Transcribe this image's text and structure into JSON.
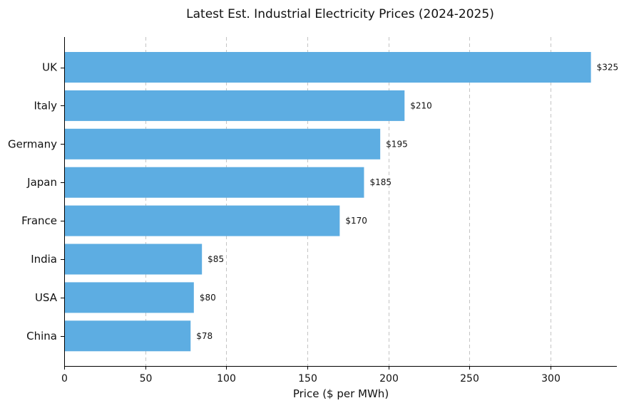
{
  "chart_data": {
    "type": "bar",
    "orientation": "horizontal",
    "title": "Latest Est. Industrial Electricity Prices (2024-2025)",
    "xlabel": "Price ($ per MWh)",
    "ylabel": "",
    "categories": [
      "UK",
      "Italy",
      "Germany",
      "Japan",
      "France",
      "India",
      "USA",
      "China"
    ],
    "values": [
      325,
      210,
      195,
      185,
      170,
      85,
      80,
      78
    ],
    "data_labels": [
      "$325",
      "$210",
      "$195",
      "$185",
      "$170",
      "$85",
      "$80",
      "$78"
    ],
    "xlim": [
      0,
      341
    ],
    "xticks": [
      0,
      50,
      100,
      150,
      200,
      250,
      300
    ],
    "xtick_labels": [
      "0",
      "50",
      "100",
      "150",
      "200",
      "250",
      "300"
    ],
    "grid": "x-axis dashed",
    "legend": "none",
    "bar_color": "#5DADE2"
  }
}
